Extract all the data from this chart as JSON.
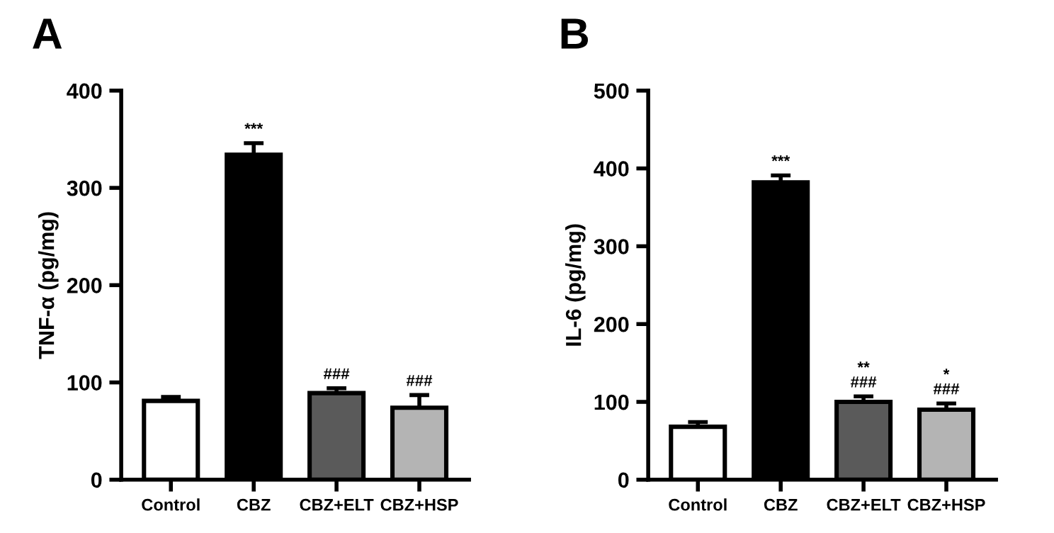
{
  "chart_data": [
    {
      "type": "bar",
      "title": "A",
      "ylabel": "TNF-α (pg/mg)",
      "categories": [
        "Control",
        "CBZ",
        "CBZ+ELT",
        "CBZ+HSP"
      ],
      "values": [
        81,
        334,
        89,
        74
      ],
      "errors": [
        4,
        12,
        5,
        13
      ],
      "colors": [
        "#ffffff",
        "#000000",
        "#5a5a5a",
        "#b4b4b4"
      ],
      "ylim": [
        0,
        400
      ],
      "yticks": [
        0,
        100,
        200,
        300,
        400
      ],
      "grid": false,
      "legend": false,
      "annotations": [
        {
          "text": "***",
          "x": "CBZ",
          "y": 346
        },
        {
          "text": "###",
          "x": "CBZ+ELT",
          "y": 94
        },
        {
          "text": "###",
          "x": "CBZ+HSP",
          "y": 87
        }
      ]
    },
    {
      "type": "bar",
      "title": "B",
      "ylabel": "IL-6 (pg/mg)",
      "categories": [
        "Control",
        "CBZ",
        "CBZ+ELT",
        "CBZ+HSP"
      ],
      "values": [
        68,
        382,
        100,
        90
      ],
      "errors": [
        6,
        9,
        7,
        8
      ],
      "colors": [
        "#ffffff",
        "#000000",
        "#5a5a5a",
        "#b4b4b4"
      ],
      "ylim": [
        0,
        500
      ],
      "yticks": [
        0,
        100,
        200,
        300,
        400,
        500
      ],
      "grid": false,
      "legend": false,
      "annotations": [
        {
          "text": "***",
          "x": "CBZ",
          "y": 391
        },
        {
          "text": "**\n###",
          "x": "CBZ+ELT",
          "y": 107
        },
        {
          "text": "*\n###",
          "x": "CBZ+HSP",
          "y": 98
        }
      ]
    }
  ]
}
